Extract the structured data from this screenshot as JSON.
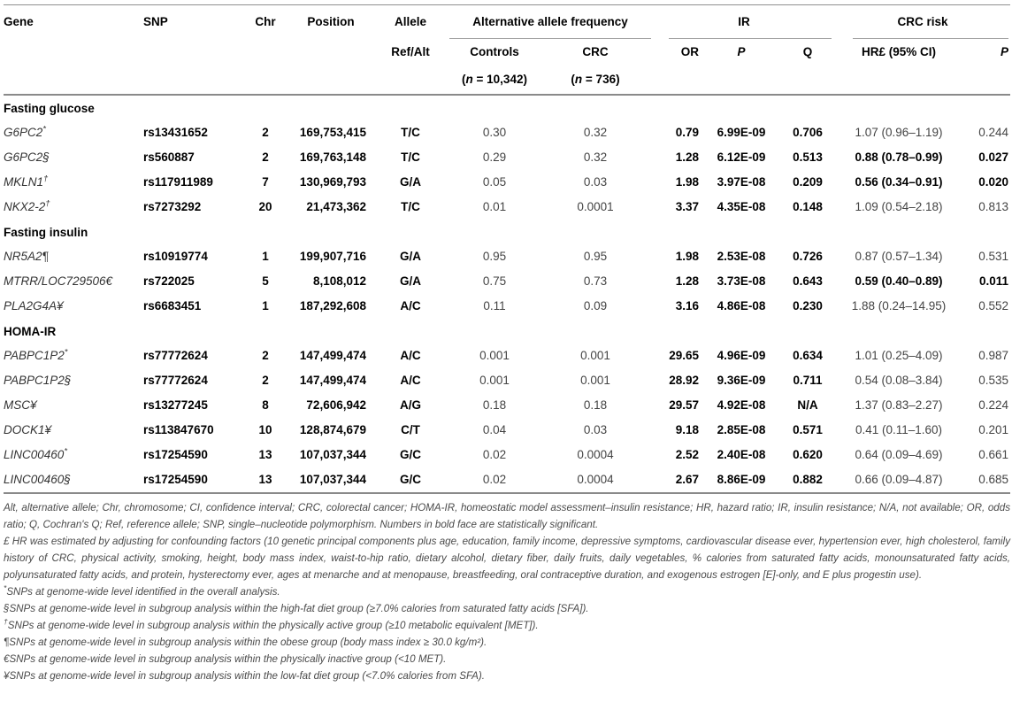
{
  "table": {
    "header": {
      "gene": "Gene",
      "snp": "SNP",
      "chr": "Chr",
      "position": "Position",
      "allele": "Allele",
      "allele_sub": "Ref/Alt",
      "group_aaf": "Alternative allele frequency",
      "controls": "Controls",
      "controls_n": "(n = 10,342)",
      "crc": "CRC",
      "crc_n": "(n = 736)",
      "group_ir": "IR",
      "or": "OR",
      "p_ir": "P",
      "q": "Q",
      "group_crc_risk": "CRC risk",
      "hr": "HR£ (95% CI)",
      "p_crc": "P"
    },
    "sections": [
      {
        "label": "Fasting glucose",
        "rows": [
          {
            "gene": "G6PC2",
            "marker": "*",
            "marker_sup": true,
            "snp": "rs13431652",
            "chr": "2",
            "position": "169,753,415",
            "allele": "T/C",
            "freq_controls": "0.30",
            "freq_crc": "0.32",
            "or": "0.79",
            "p_ir": "6.99E-09",
            "q": "0.706",
            "hr": "1.07 (0.96–1.19)",
            "hr_bold": false,
            "p_crc": "0.244",
            "p_crc_bold": false
          },
          {
            "gene": "G6PC2",
            "marker": "§",
            "marker_sup": false,
            "snp": "rs560887",
            "chr": "2",
            "position": "169,763,148",
            "allele": "T/C",
            "freq_controls": "0.29",
            "freq_crc": "0.32",
            "or": "1.28",
            "p_ir": "6.12E-09",
            "q": "0.513",
            "hr": "0.88 (0.78–0.99)",
            "hr_bold": true,
            "p_crc": "0.027",
            "p_crc_bold": true
          },
          {
            "gene": "MKLN1",
            "marker": "†",
            "marker_sup": true,
            "snp": "rs117911989",
            "chr": "7",
            "position": "130,969,793",
            "allele": "G/A",
            "freq_controls": "0.05",
            "freq_crc": "0.03",
            "or": "1.98",
            "p_ir": "3.97E-08",
            "q": "0.209",
            "hr": "0.56 (0.34–0.91)",
            "hr_bold": true,
            "p_crc": "0.020",
            "p_crc_bold": true
          },
          {
            "gene": "NKX2-2",
            "marker": "†",
            "marker_sup": true,
            "snp": "rs7273292",
            "chr": "20",
            "position": "21,473,362",
            "allele": "T/C",
            "freq_controls": "0.01",
            "freq_crc": "0.0001",
            "or": "3.37",
            "p_ir": "4.35E-08",
            "q": "0.148",
            "hr": "1.09 (0.54–2.18)",
            "hr_bold": false,
            "p_crc": "0.813",
            "p_crc_bold": false
          }
        ]
      },
      {
        "label": "Fasting insulin",
        "rows": [
          {
            "gene": "NR5A2",
            "marker": "¶",
            "marker_sup": false,
            "snp": "rs10919774",
            "chr": "1",
            "position": "199,907,716",
            "allele": "G/A",
            "freq_controls": "0.95",
            "freq_crc": "0.95",
            "or": "1.98",
            "p_ir": "2.53E-08",
            "q": "0.726",
            "hr": "0.87 (0.57–1.34)",
            "hr_bold": false,
            "p_crc": "0.531",
            "p_crc_bold": false
          },
          {
            "gene": "MTRR/LOC729506",
            "marker": "€",
            "marker_sup": false,
            "snp": "rs722025",
            "chr": "5",
            "position": "8,108,012",
            "allele": "G/A",
            "freq_controls": "0.75",
            "freq_crc": "0.73",
            "or": "1.28",
            "p_ir": "3.73E-08",
            "q": "0.643",
            "hr": "0.59 (0.40–0.89)",
            "hr_bold": true,
            "p_crc": "0.011",
            "p_crc_bold": true
          },
          {
            "gene": "PLA2G4A",
            "marker": "¥",
            "marker_sup": false,
            "snp": "rs6683451",
            "chr": "1",
            "position": "187,292,608",
            "allele": "A/C",
            "freq_controls": "0.11",
            "freq_crc": "0.09",
            "or": "3.16",
            "p_ir": "4.86E-08",
            "q": "0.230",
            "hr": "1.88 (0.24–14.95)",
            "hr_bold": false,
            "p_crc": "0.552",
            "p_crc_bold": false
          }
        ]
      },
      {
        "label": "HOMA-IR",
        "rows": [
          {
            "gene": "PABPC1P2",
            "marker": "*",
            "marker_sup": true,
            "snp": "rs77772624",
            "chr": "2",
            "position": "147,499,474",
            "allele": "A/C",
            "freq_controls": "0.001",
            "freq_crc": "0.001",
            "or": "29.65",
            "p_ir": "4.96E-09",
            "q": "0.634",
            "hr": "1.01 (0.25–4.09)",
            "hr_bold": false,
            "p_crc": "0.987",
            "p_crc_bold": false
          },
          {
            "gene": "PABPC1P2",
            "marker": "§",
            "marker_sup": false,
            "snp": "rs77772624",
            "chr": "2",
            "position": "147,499,474",
            "allele": "A/C",
            "freq_controls": "0.001",
            "freq_crc": "0.001",
            "or": "28.92",
            "p_ir": "9.36E-09",
            "q": "0.711",
            "hr": "0.54 (0.08–3.84)",
            "hr_bold": false,
            "p_crc": "0.535",
            "p_crc_bold": false
          },
          {
            "gene": "MSC",
            "marker": "¥",
            "marker_sup": false,
            "snp": "rs13277245",
            "chr": "8",
            "position": "72,606,942",
            "allele": "A/G",
            "freq_controls": "0.18",
            "freq_crc": "0.18",
            "or": "29.57",
            "p_ir": "4.92E-08",
            "q": "N/A",
            "hr": "1.37 (0.83–2.27)",
            "hr_bold": false,
            "p_crc": "0.224",
            "p_crc_bold": false
          },
          {
            "gene": "DOCK1",
            "marker": "¥",
            "marker_sup": false,
            "snp": "rs113847670",
            "chr": "10",
            "position": "128,874,679",
            "allele": "C/T",
            "freq_controls": "0.04",
            "freq_crc": "0.03",
            "or": "9.18",
            "p_ir": "2.85E-08",
            "q": "0.571",
            "hr": "0.41 (0.11–1.60)",
            "hr_bold": false,
            "p_crc": "0.201",
            "p_crc_bold": false
          },
          {
            "gene": "LINC00460",
            "marker": "*",
            "marker_sup": true,
            "snp": "rs17254590",
            "chr": "13",
            "position": "107,037,344",
            "allele": "G/C",
            "freq_controls": "0.02",
            "freq_crc": "0.0004",
            "or": "2.52",
            "p_ir": "2.40E-08",
            "q": "0.620",
            "hr": "0.64 (0.09–4.69)",
            "hr_bold": false,
            "p_crc": "0.661",
            "p_crc_bold": false
          },
          {
            "gene": "LINC00460",
            "marker": "§",
            "marker_sup": false,
            "snp": "rs17254590",
            "chr": "13",
            "position": "107,037,344",
            "allele": "G/C",
            "freq_controls": "0.02",
            "freq_crc": "0.0004",
            "or": "2.67",
            "p_ir": "8.86E-09",
            "q": "0.882",
            "hr": "0.66 (0.09–4.87)",
            "hr_bold": false,
            "p_crc": "0.685",
            "p_crc_bold": false
          }
        ]
      }
    ],
    "footnotes": [
      {
        "marker": "",
        "marker_sup": false,
        "text": "Alt, alternative allele; Chr, chromosome; CI, confidence interval; CRC, colorectal cancer; HOMA-IR, homeostatic model assessment–insulin resistance; HR, hazard ratio; IR, insulin resistance; N/A, not available; OR, odds ratio; Q, Cochran's Q; Ref, reference allele; SNP, single–nucleotide polymorphism. Numbers in bold face are statistically significant."
      },
      {
        "marker": "",
        "marker_sup": false,
        "text": "£ HR was estimated by adjusting for confounding factors (10 genetic principal components plus age, education, family income, depressive symptoms, cardiovascular disease ever, hypertension ever, high cholesterol, family history of CRC, physical activity, smoking, height, body mass index, waist-to-hip ratio, dietary alcohol, dietary fiber, daily fruits, daily vegetables, % calories from saturated fatty acids, monounsaturated fatty acids, polyunsaturated fatty acids, and protein, hysterectomy ever, ages at menarche and at menopause, breastfeeding, oral contraceptive duration, and exogenous estrogen [E]-only, and E plus progestin use)."
      },
      {
        "marker": "*",
        "marker_sup": true,
        "text": "SNPs at genome-wide level identified in the overall analysis."
      },
      {
        "marker": "§",
        "marker_sup": false,
        "text": "SNPs at genome-wide level in subgroup analysis within the high-fat diet group (≥7.0% calories from saturated fatty acids [SFA])."
      },
      {
        "marker": "†",
        "marker_sup": true,
        "text": "SNPs at genome-wide level in subgroup analysis within the physically active group (≥10 metabolic equivalent [MET])."
      },
      {
        "marker": "¶",
        "marker_sup": false,
        "text": "SNPs at genome-wide level in subgroup analysis within the obese group (body mass index ≥ 30.0 kg/m²)."
      },
      {
        "marker": "€",
        "marker_sup": false,
        "text": "SNPs at genome-wide level in subgroup analysis within the physically inactive group (<10 MET)."
      },
      {
        "marker": "¥",
        "marker_sup": false,
        "text": "SNPs at genome-wide level in subgroup analysis within the low-fat diet group (<7.0% calories from SFA)."
      }
    ]
  }
}
